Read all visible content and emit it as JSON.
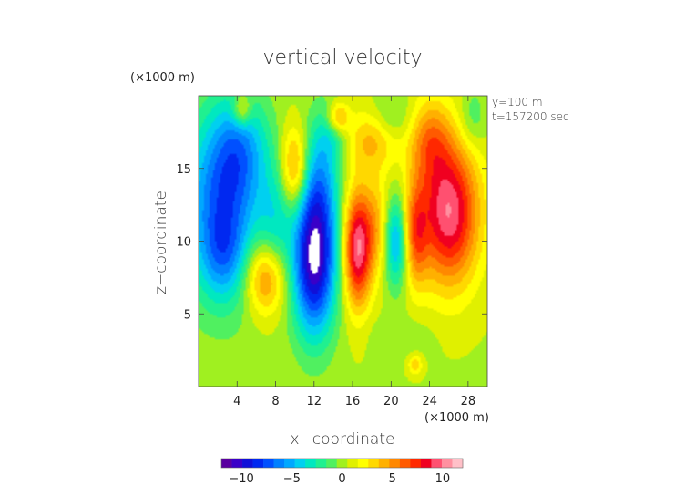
{
  "chart_data": {
    "type": "heatmap",
    "title": "vertical velocity",
    "xlabel": "x−coordinate",
    "ylabel": "z−coordinate",
    "x_unit": "(×1000 m)",
    "y_unit": "(×1000 m)",
    "annotations": [
      "y=100 m",
      "t=157200 sec"
    ],
    "xlim": [
      0,
      30
    ],
    "ylim": [
      0,
      20
    ],
    "x_ticks": [
      4,
      8,
      12,
      16,
      20,
      24,
      28
    ],
    "y_ticks": [
      5,
      10,
      15
    ],
    "colorbar": {
      "min": -12,
      "max": 12,
      "ticks": [
        -10,
        -5,
        0,
        5,
        10
      ],
      "tick_labels": [
        "−10",
        "−5",
        "0",
        "5",
        "10"
      ]
    },
    "background_value": 0.4,
    "features": [
      {
        "x": 2.5,
        "z": 12.5,
        "sx": 2.8,
        "sz": 4.5,
        "value": -7.5
      },
      {
        "x": 4.5,
        "z": 16.5,
        "sx": 2.0,
        "sz": 2.5,
        "value": -3.5
      },
      {
        "x": 2.5,
        "z": 9.0,
        "sx": 1.5,
        "sz": 2.0,
        "value": -2.5
      },
      {
        "x": 12.0,
        "z": 8.5,
        "sx": 1.6,
        "sz": 3.5,
        "value": -11.0
      },
      {
        "x": 12.5,
        "z": 14.0,
        "sx": 1.5,
        "sz": 3.0,
        "value": -4.5
      },
      {
        "x": 8.0,
        "z": 11.0,
        "sx": 1.2,
        "sz": 3.0,
        "value": -3.0
      },
      {
        "x": 20.5,
        "z": 10.0,
        "sx": 0.9,
        "sz": 2.2,
        "value": -6.0
      },
      {
        "x": 14.0,
        "z": 17.5,
        "sx": 1.2,
        "sz": 1.5,
        "value": -2.5
      },
      {
        "x": 20.0,
        "z": 18.5,
        "sx": 1.5,
        "sz": 1.2,
        "value": -2.0
      },
      {
        "x": 28.5,
        "z": 18.5,
        "sx": 1.0,
        "sz": 1.5,
        "value": -2.0
      },
      {
        "x": 7.0,
        "z": 7.5,
        "sx": 1.5,
        "sz": 1.8,
        "value": 6.0
      },
      {
        "x": 10.0,
        "z": 15.0,
        "sx": 1.0,
        "sz": 2.0,
        "value": 5.5
      },
      {
        "x": 16.5,
        "z": 9.5,
        "sx": 1.0,
        "sz": 2.8,
        "value": 9.5
      },
      {
        "x": 18.5,
        "z": 11.0,
        "sx": 1.0,
        "sz": 2.5,
        "value": 3.5
      },
      {
        "x": 22.5,
        "z": 10.5,
        "sx": 0.9,
        "sz": 2.5,
        "value": 5.0
      },
      {
        "x": 26.0,
        "z": 12.0,
        "sx": 2.2,
        "sz": 3.5,
        "value": 9.5
      },
      {
        "x": 18.0,
        "z": 17.0,
        "sx": 2.0,
        "sz": 1.5,
        "value": 3.5
      },
      {
        "x": 24.0,
        "z": 17.0,
        "sx": 1.5,
        "sz": 2.0,
        "value": 4.0
      },
      {
        "x": 4.5,
        "z": 19.0,
        "sx": 0.7,
        "sz": 0.8,
        "value": 4.0
      },
      {
        "x": 14.5,
        "z": 18.5,
        "sx": 0.8,
        "sz": 0.8,
        "value": 5.0
      },
      {
        "x": 22.5,
        "z": 1.5,
        "sx": 0.5,
        "sz": 0.5,
        "value": 3.0
      },
      {
        "x": 21.0,
        "z": 3.5,
        "sx": 2.5,
        "sz": 1.0,
        "value": -0.8
      }
    ]
  }
}
